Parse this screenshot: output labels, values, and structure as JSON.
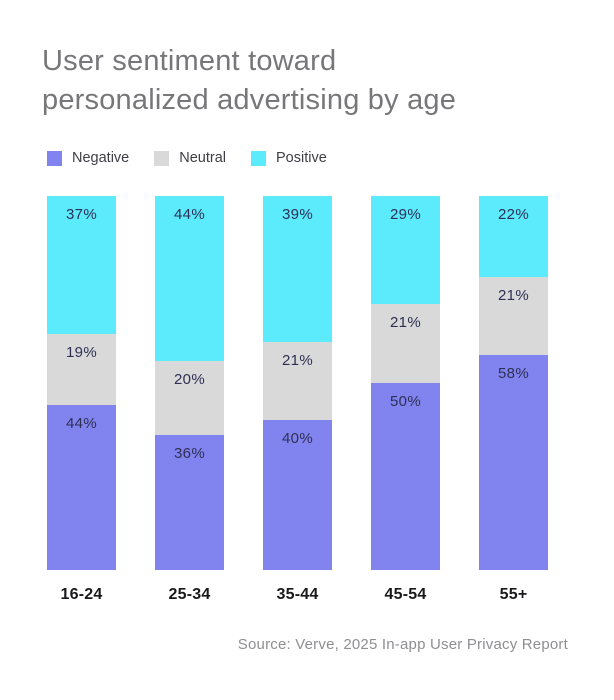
{
  "title_line1": "User sentiment toward",
  "title_line2": "personalized advertising by age",
  "source": "Source: Verve, 2025 In-app User Privacy Report",
  "chart_data": {
    "type": "bar",
    "subtype": "stacked-100",
    "title": "User sentiment toward personalized advertising by age",
    "categories": [
      "16-24",
      "25-34",
      "35-44",
      "45-54",
      "55+"
    ],
    "series": [
      {
        "name": "Negative",
        "color": "#8184EE",
        "values": [
          44,
          36,
          40,
          50,
          58
        ]
      },
      {
        "name": "Neutral",
        "color": "#D9D9D9",
        "values": [
          19,
          20,
          21,
          21,
          21
        ]
      },
      {
        "name": "Positive",
        "color": "#5BEBFC",
        "values": [
          37,
          44,
          39,
          29,
          22
        ]
      }
    ],
    "value_suffix": "%",
    "stack_order_top_to_bottom": [
      "Positive",
      "Neutral",
      "Negative"
    ],
    "legend_position": "top-left",
    "grid": false,
    "axes_hidden": true,
    "label_color": "#2F2F55",
    "source": "Source: Verve, 2025 In-app User Privacy Report"
  }
}
